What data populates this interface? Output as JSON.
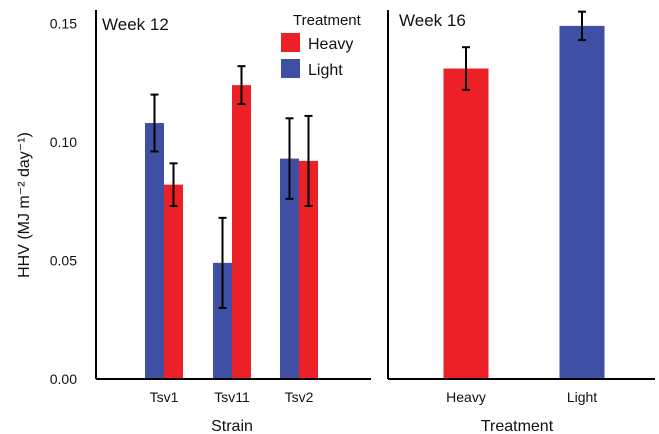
{
  "chart_data": [
    {
      "type": "bar",
      "title": "Week 12",
      "xlabel": "Strain",
      "ylabel": "HHV (MJ m⁻² day⁻¹)",
      "ylim": [
        0,
        0.15
      ],
      "yticks": [
        "0.00",
        "0.05",
        "0.10",
        "0.15"
      ],
      "categories": [
        "Tsv1",
        "Tsv11",
        "Tsv2"
      ],
      "series": [
        {
          "name": "Light",
          "color": "#3f4fa3",
          "values": [
            0.108,
            0.049,
            0.093
          ],
          "errors": [
            0.012,
            0.019,
            0.017
          ]
        },
        {
          "name": "Heavy",
          "color": "#ec2127",
          "values": [
            0.082,
            0.124,
            0.092
          ],
          "errors": [
            0.009,
            0.008,
            0.019
          ]
        }
      ],
      "legend": {
        "title": "Treatment",
        "placement": "top-right",
        "order": [
          "Heavy",
          "Light"
        ]
      },
      "grid": false
    },
    {
      "type": "bar",
      "title": "Week 16",
      "xlabel": "Treatment",
      "ylim": [
        0,
        0.15
      ],
      "categories": [
        "Heavy",
        "Light"
      ],
      "values": [
        0.131,
        0.149
      ],
      "errors": [
        0.009,
        0.006
      ],
      "colors": [
        "#ec2127",
        "#3f4fa3"
      ],
      "grid": false
    }
  ]
}
